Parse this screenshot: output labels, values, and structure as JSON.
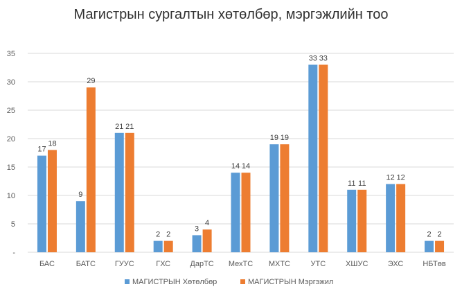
{
  "chart_data": {
    "type": "bar",
    "title": "Магистрын сургалтын хөтөлбөр, мэргэжлийн тоо",
    "categories": [
      "БАС",
      "БАТС",
      "ГУУС",
      "ГХС",
      "ДарТС",
      "МехТС",
      "МХТС",
      "УТС",
      "ХШУС",
      "ЭХС",
      "НБТөв"
    ],
    "series": [
      {
        "name": "МАГИСТРЫН Хөтөлбөр",
        "color": "#5B9BD5",
        "values": [
          17,
          9,
          21,
          2,
          3,
          14,
          19,
          33,
          11,
          12,
          2
        ]
      },
      {
        "name": "МАГИСТРЫН Мэргэжил",
        "color": "#ED7D31",
        "values": [
          18,
          29,
          21,
          2,
          4,
          14,
          19,
          33,
          11,
          12,
          2
        ]
      }
    ],
    "yticks": [
      "-",
      "5",
      "10",
      "15",
      "20",
      "25",
      "30",
      "35"
    ],
    "ylim": [
      0,
      35
    ],
    "grid": true,
    "legend_position": "bottom",
    "data_labels": true
  }
}
